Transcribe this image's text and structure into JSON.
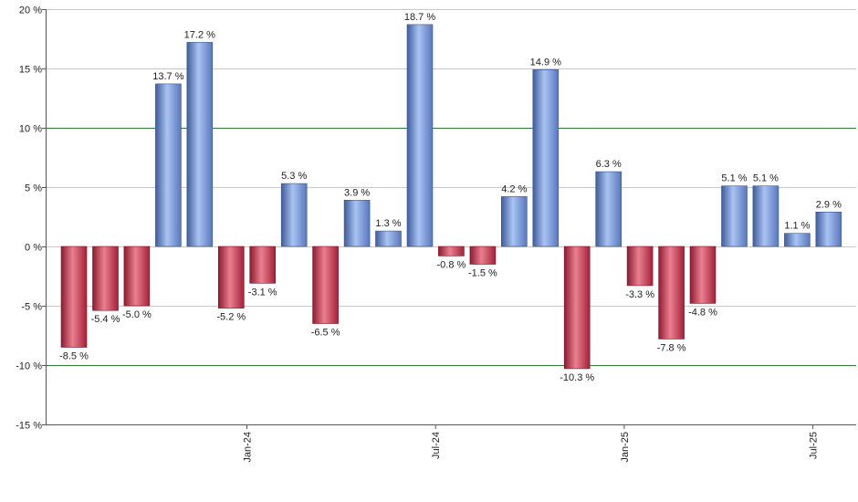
{
  "chart_data": {
    "type": "bar",
    "unit_suffix": " %",
    "ylim": [
      -15,
      20
    ],
    "yticks": [
      20,
      15,
      10,
      5,
      0,
      -5,
      -10,
      -15
    ],
    "ytick_labels": [
      "20 %",
      "15 %",
      "10 %",
      "5 %",
      "0 %",
      "-5 %",
      "-10 %",
      "-15 %"
    ],
    "reference_lines": [
      10,
      -10
    ],
    "xtick_labels": [
      {
        "label": "Jan-24",
        "after_bar": 5
      },
      {
        "label": "Jul-24",
        "after_bar": 11
      },
      {
        "label": "Jan-25",
        "after_bar": 17
      },
      {
        "label": "Jul-25",
        "after_bar": 23
      }
    ],
    "values": [
      -8.5,
      -5.4,
      -5.0,
      13.7,
      17.2,
      -5.2,
      -3.1,
      5.3,
      -6.5,
      3.9,
      1.3,
      18.7,
      -0.8,
      -1.5,
      4.2,
      14.9,
      -10.3,
      6.3,
      -3.3,
      -7.8,
      -4.8,
      5.1,
      5.1,
      1.1,
      2.9
    ],
    "labels": [
      "-8.5 %",
      "-5.4 %",
      "-5.0 %",
      "13.7 %",
      "17.2 %",
      "-5.2 %",
      "-3.1 %",
      "5.3 %",
      "-6.5 %",
      "3.9 %",
      "1.3 %",
      "18.7 %",
      "-0.8 %",
      "-1.5 %",
      "4.2 %",
      "14.9 %",
      "-10.3 %",
      "6.3 %",
      "-3.3 %",
      "-7.8 %",
      "-4.8 %",
      "5.1 %",
      "5.1 %",
      "1.1 %",
      "2.9 %"
    ],
    "colors": {
      "positive": "#6d8fd6",
      "negative": "#c3304a",
      "reference_line": "#2e7d32",
      "grid": "#c8c8c8",
      "axis": "#555555"
    },
    "grid": true
  }
}
